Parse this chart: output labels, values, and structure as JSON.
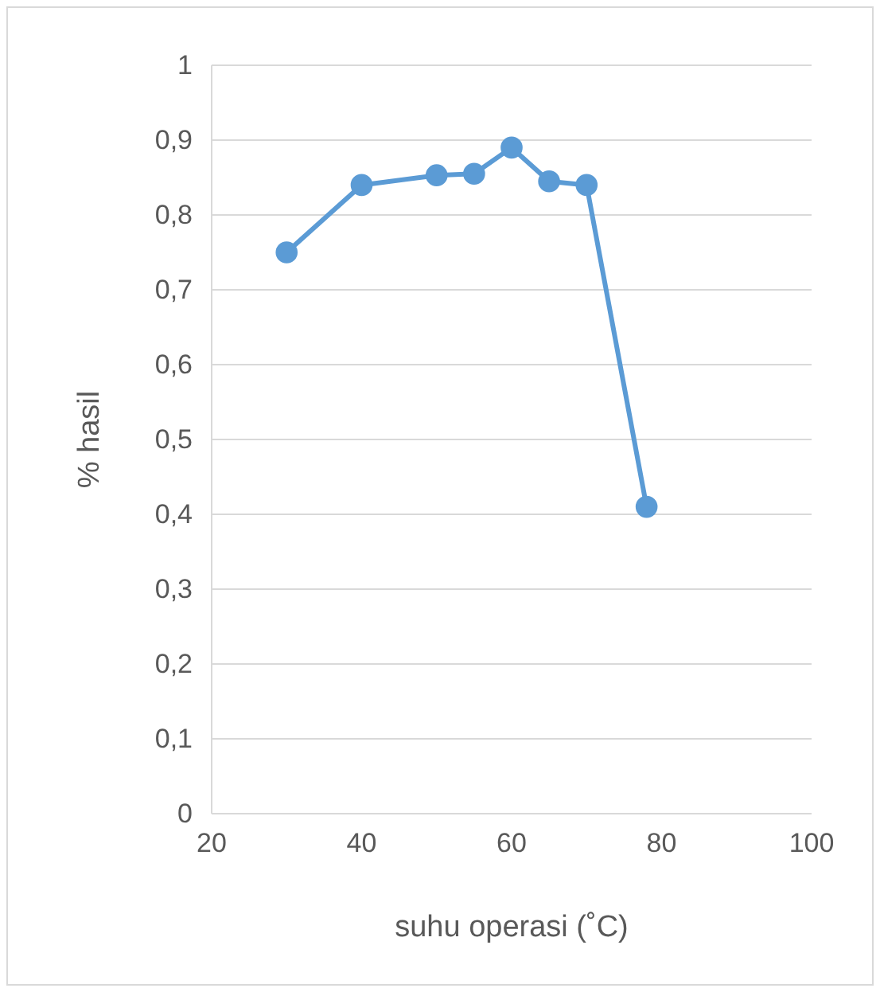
{
  "chart_data": {
    "type": "line",
    "xlabel": "suhu operasi (˚C)",
    "ylabel": "% hasil",
    "x": [
      30,
      40,
      50,
      55,
      60,
      65,
      70,
      78
    ],
    "series": [
      {
        "color": "#5b9bd5",
        "values": [
          0.75,
          0.84,
          0.853,
          0.855,
          0.89,
          0.845,
          0.84,
          0.41
        ]
      }
    ],
    "xlim": [
      20,
      100
    ],
    "xticks": [
      20,
      40,
      60,
      80,
      100
    ],
    "ylim": [
      0,
      1
    ],
    "yticks": [
      {
        "value": 0,
        "label": "0"
      },
      {
        "value": 0.1,
        "label": "0,1"
      },
      {
        "value": 0.2,
        "label": "0,2"
      },
      {
        "value": 0.3,
        "label": "0,3"
      },
      {
        "value": 0.4,
        "label": "0,4"
      },
      {
        "value": 0.5,
        "label": "0,5"
      },
      {
        "value": 0.6,
        "label": "0,6"
      },
      {
        "value": 0.7,
        "label": "0,7"
      },
      {
        "value": 0.8,
        "label": "0,8"
      },
      {
        "value": 0.9,
        "label": "0,9"
      },
      {
        "value": 1,
        "label": "1"
      }
    ],
    "grid": "y",
    "marker": "circle",
    "line_style": "solid"
  }
}
